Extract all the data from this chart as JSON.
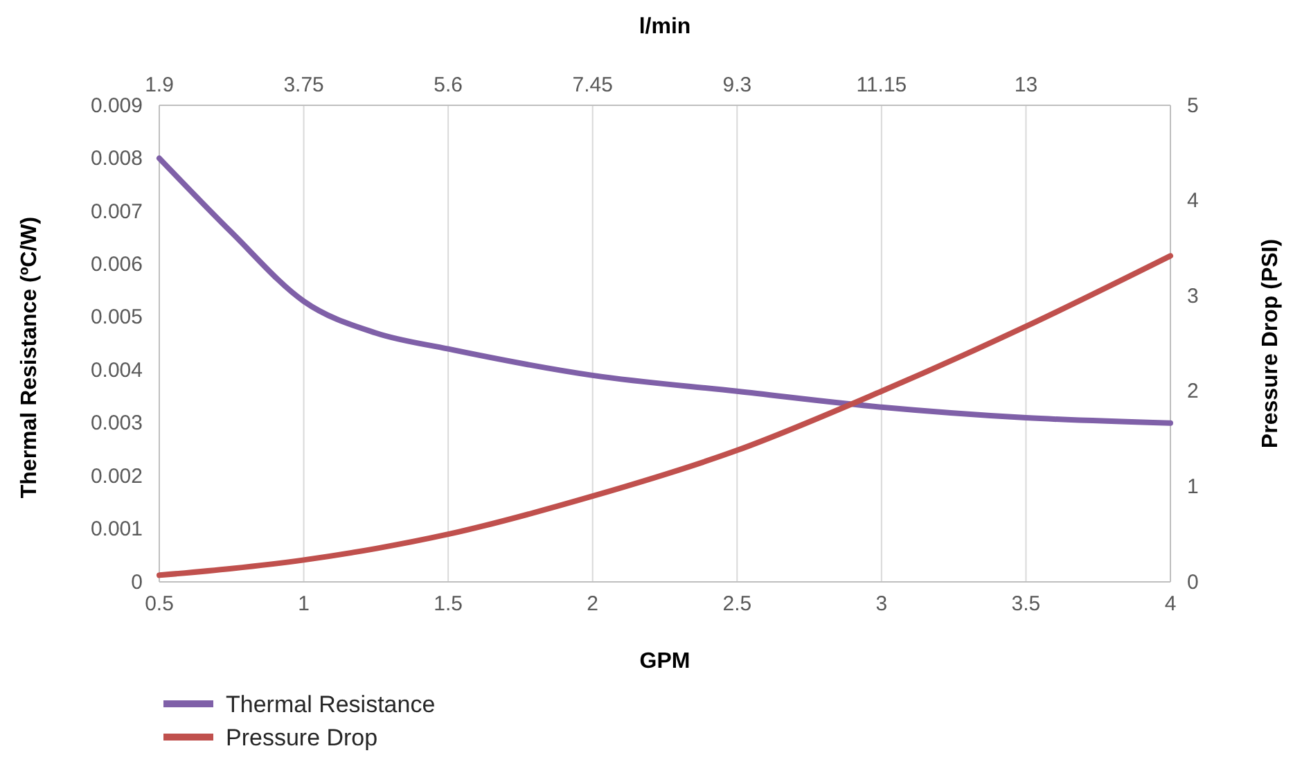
{
  "chart_data": {
    "type": "line",
    "xlabel": "GPM",
    "ylabel": "Thermal Resistance (ºC/W)",
    "y2label": "Pressure Drop (PSI)",
    "x2label": "l/min",
    "x": [
      0.5,
      0.75,
      1,
      1.25,
      1.5,
      2,
      2.5,
      3,
      3.5,
      4
    ],
    "series": [
      {
        "name": "Thermal Resistance",
        "color": "#7f60a8",
        "values": [
          0.008,
          0.0066,
          0.0053,
          0.0047,
          0.0044,
          0.0039,
          0.0036,
          0.0033,
          0.0031,
          0.003
        ]
      },
      {
        "name": "Pressure Drop",
        "color": "#c0504d",
        "axis": "y2",
        "values": [
          0.07,
          0.14,
          0.23,
          0.35,
          0.5,
          0.9,
          1.38,
          2.0,
          2.68,
          3.42
        ]
      }
    ],
    "xlim": [
      0.5,
      4
    ],
    "xticks": [
      0.5,
      1,
      1.5,
      2,
      2.5,
      3,
      3.5,
      4
    ],
    "x2lim": [
      1.9,
      14.85
    ],
    "x2ticks": [
      1.9,
      3.75,
      5.6,
      7.45,
      9.3,
      11.15,
      13
    ],
    "ylim": [
      0,
      0.009
    ],
    "yticks": [
      0,
      0.001,
      0.002,
      0.003,
      0.004,
      0.005,
      0.006,
      0.007,
      0.008,
      0.009
    ],
    "y2lim": [
      0,
      5
    ],
    "y2ticks": [
      0,
      1,
      2,
      3,
      4,
      5
    ],
    "grid": "x",
    "legend": "bottom",
    "marker": "none",
    "line_style": "solid"
  }
}
